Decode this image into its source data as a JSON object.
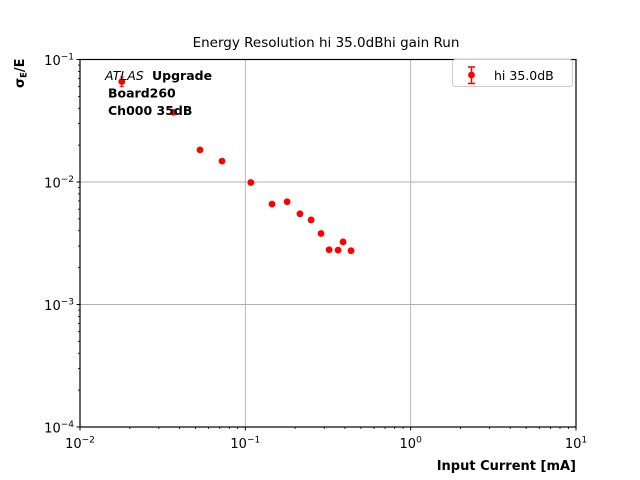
{
  "chart_data": {
    "type": "scatter",
    "title": "Energy Resolution hi 35.0dBhi gain Run",
    "xlabel": "Input Current [mA]",
    "ylabel": "σE/E",
    "ylabel_parts": {
      "base": "σ",
      "subscript": "E",
      "rest": "/E"
    },
    "xscale": "log",
    "yscale": "log",
    "xlim": [
      0.01,
      10
    ],
    "ylim": [
      0.0001,
      0.1
    ],
    "x_tick_exponents": [
      -2,
      -1,
      0,
      1
    ],
    "y_tick_exponents": [
      -4,
      -3,
      -2,
      -1
    ],
    "grid": "major-on",
    "legend": {
      "label": "hi 35.0dB",
      "position": "upper-right"
    },
    "annotation": {
      "line1_italic": "ATLAS",
      "line1_bold": "Upgrade",
      "line2": "Board260",
      "line3": "Ch000 35dB"
    },
    "colors": {
      "marker": "#ff0000",
      "grid": "#b0b0b0",
      "spine": "#000000",
      "legend_border": "#cccccc",
      "text": "#000000"
    },
    "series": [
      {
        "name": "hi 35.0dB",
        "x": [
          0.0179,
          0.0368,
          0.0532,
          0.0723,
          0.108,
          0.145,
          0.179,
          0.214,
          0.25,
          0.287,
          0.321,
          0.364,
          0.39,
          0.436
        ],
        "y": [
          0.066,
          0.037,
          0.0183,
          0.0148,
          0.0099,
          0.0066,
          0.0069,
          0.0055,
          0.0049,
          0.0038,
          0.0028,
          0.00278,
          0.00324,
          0.00275
        ],
        "yerr": [
          0.006,
          0.0012,
          0.0006,
          0.0004,
          0.00025,
          0.00018,
          0.00018,
          0.00014,
          0.00012,
          0.0001,
          8e-05,
          8e-05,
          9e-05,
          8e-05
        ]
      }
    ]
  }
}
